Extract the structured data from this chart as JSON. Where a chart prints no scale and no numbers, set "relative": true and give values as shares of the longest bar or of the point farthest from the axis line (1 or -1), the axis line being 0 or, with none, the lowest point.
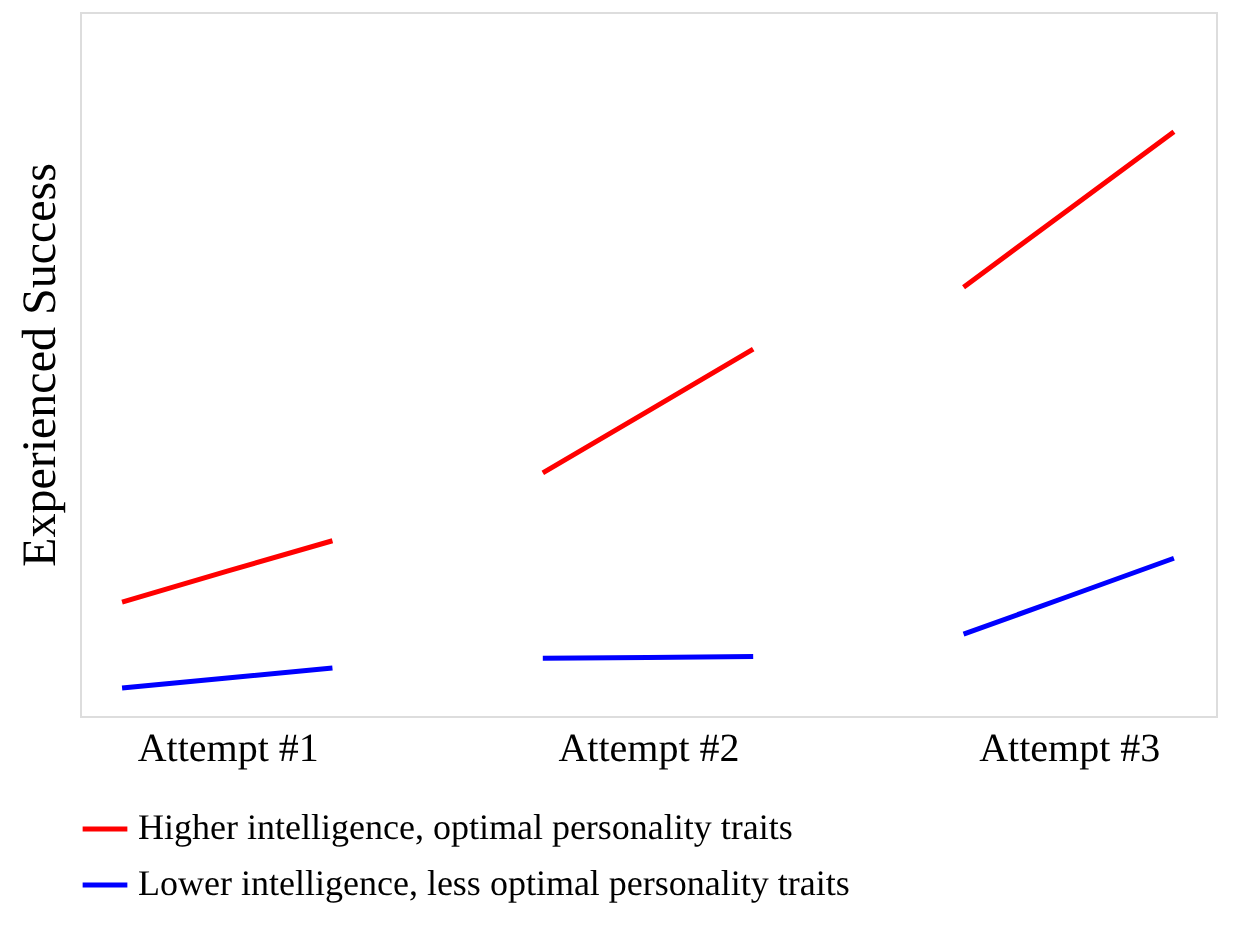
{
  "chart_data": {
    "type": "line",
    "relative": true,
    "ylabel": "Experienced Success",
    "categories": [
      null,
      "Attempt #1",
      null,
      null,
      null,
      "Attempt #2",
      null,
      null,
      null,
      "Attempt #3",
      null
    ],
    "series": [
      {
        "name": "Higher intelligence, optimal personality traits",
        "color": "#ff0000",
        "values": [
          0.195,
          0.248,
          0.3,
          null,
          0.416,
          0.522,
          0.628,
          null,
          0.734,
          0.867,
          1
        ]
      },
      {
        "name": "Lower intelligence, less optimal personality traits",
        "color": "#0000ff",
        "values": [
          0.048,
          0.065,
          0.082,
          null,
          0.099,
          0.1,
          0.102,
          null,
          0.14,
          0.205,
          0.27
        ]
      }
    ],
    "legend": "bottom",
    "grid": false,
    "marker": "none",
    "line_style": "solid"
  }
}
